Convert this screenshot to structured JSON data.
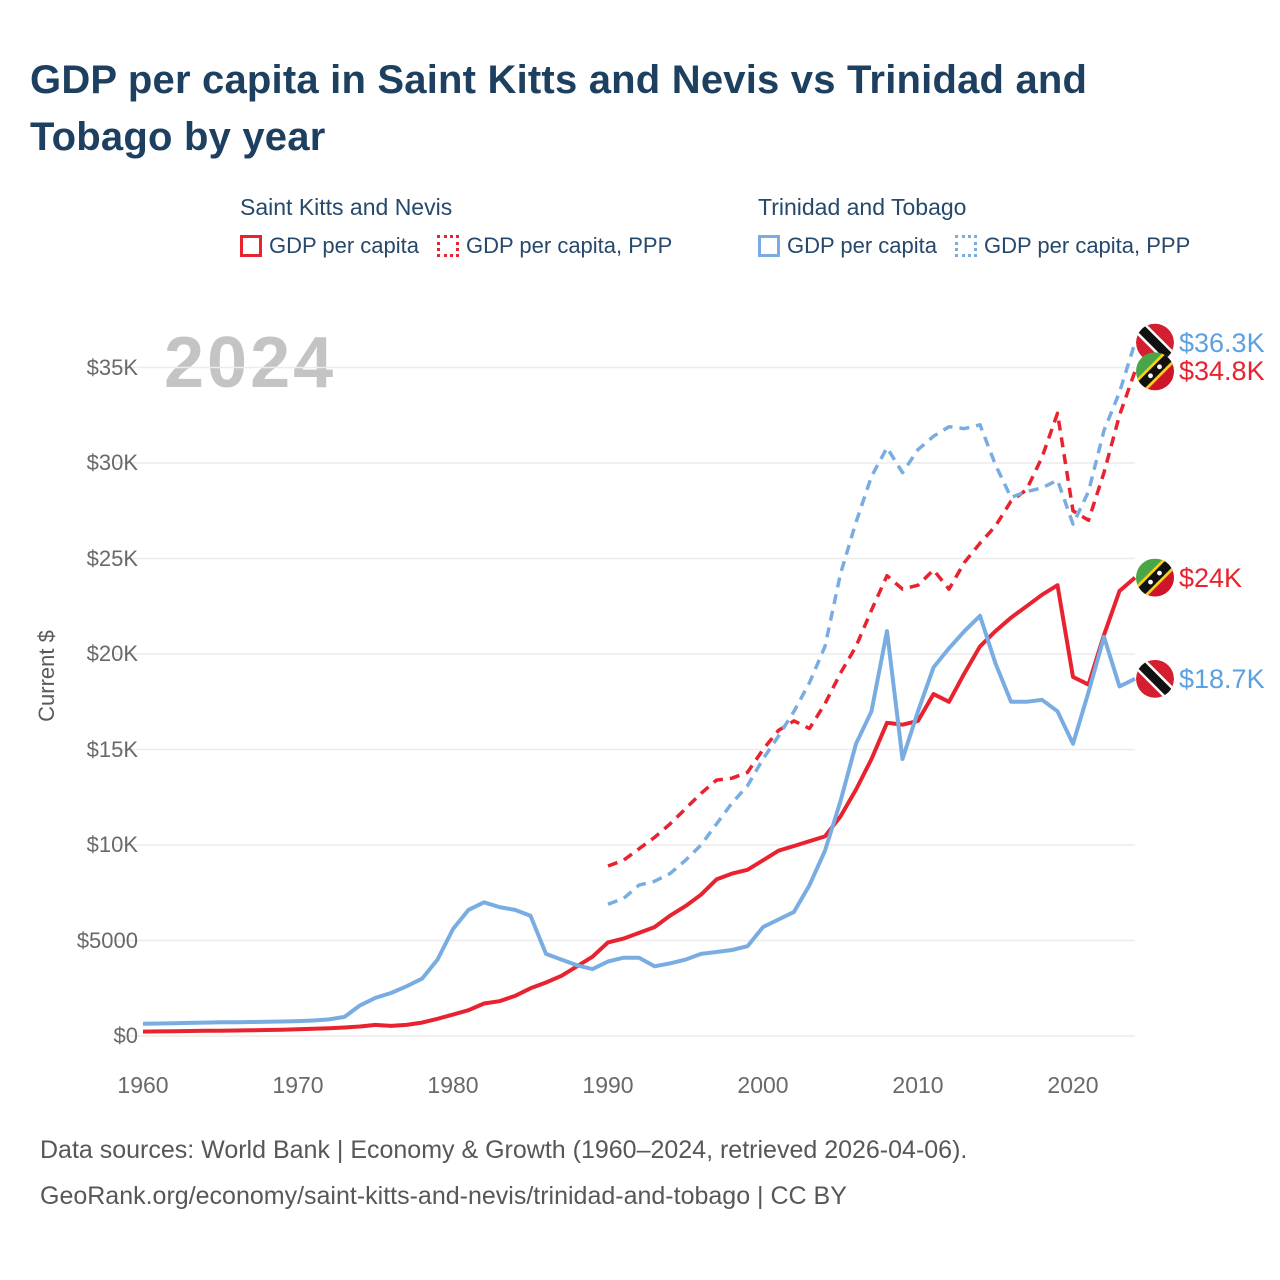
{
  "title": {
    "line1": "GDP per capita in Saint Kitts and Nevis vs Trinidad and",
    "line2": "Tobago by year"
  },
  "watermark": "2024",
  "legend": {
    "groups": [
      {
        "header": "Saint Kitts and Nevis",
        "color": "#e8232f",
        "items": [
          {
            "label": "GDP per capita",
            "style": "solid"
          },
          {
            "label": "GDP per capita, PPP",
            "style": "dotted"
          }
        ]
      },
      {
        "header": "Trinidad and Tobago",
        "color": "#79ade2",
        "items": [
          {
            "label": "GDP per capita",
            "style": "solid"
          },
          {
            "label": "GDP per capita, PPP",
            "style": "dotted"
          }
        ]
      }
    ]
  },
  "y_axis": {
    "label": "Current $",
    "ticks": [
      {
        "value": 0,
        "label": "$0"
      },
      {
        "value": 5000,
        "label": "$5000"
      },
      {
        "value": 10000,
        "label": "$10K"
      },
      {
        "value": 15000,
        "label": "$15K"
      },
      {
        "value": 20000,
        "label": "$20K"
      },
      {
        "value": 25000,
        "label": "$25K"
      },
      {
        "value": 30000,
        "label": "$30K"
      },
      {
        "value": 35000,
        "label": "$35K"
      }
    ]
  },
  "x_axis": {
    "ticks": [
      1960,
      1970,
      1980,
      1990,
      2000,
      2010,
      2020
    ]
  },
  "end_labels": [
    {
      "text": "$36.3K",
      "value": 36300,
      "color": "#5da0e0",
      "flag": "tt"
    },
    {
      "text": "$34.8K",
      "value": 34800,
      "color": "#e8232f",
      "flag": "skn"
    },
    {
      "text": "$24K",
      "value": 24000,
      "color": "#e8232f",
      "flag": "skn"
    },
    {
      "text": "$18.7K",
      "value": 18700,
      "color": "#5da0e0",
      "flag": "tt"
    }
  ],
  "footer": {
    "line1": "Data sources: World Bank | Economy & Growth (1960–2024, retrieved 2026-04-06).",
    "line2": "GeoRank.org/economy/saint-kitts-and-nevis/trinidad-and-tobago | CC BY"
  },
  "chart_data": {
    "type": "line",
    "title": "GDP per capita in Saint Kitts and Nevis vs Trinidad and Tobago by year",
    "ylabel": "Current $",
    "ylim": [
      0,
      37000
    ],
    "xlim": [
      1959,
      2025
    ],
    "grid": "horizontal",
    "legend_position": "top",
    "series": [
      {
        "name": "Saint Kitts and Nevis GDP per capita",
        "color": "#e8232f",
        "dash": false,
        "years": [
          1960,
          1961,
          1962,
          1963,
          1964,
          1965,
          1966,
          1967,
          1968,
          1969,
          1970,
          1971,
          1972,
          1973,
          1974,
          1975,
          1976,
          1977,
          1978,
          1979,
          1980,
          1981,
          1982,
          1983,
          1984,
          1985,
          1986,
          1987,
          1988,
          1989,
          1990,
          1991,
          1992,
          1993,
          1994,
          1995,
          1996,
          1997,
          1998,
          1999,
          2000,
          2001,
          2002,
          2003,
          2004,
          2005,
          2006,
          2007,
          2008,
          2009,
          2010,
          2011,
          2012,
          2013,
          2014,
          2015,
          2016,
          2017,
          2018,
          2019,
          2020,
          2021,
          2022,
          2023,
          2024
        ],
        "values": [
          230,
          240,
          250,
          260,
          270,
          280,
          290,
          300,
          315,
          330,
          350,
          375,
          405,
          445,
          500,
          580,
          530,
          580,
          700,
          900,
          1120,
          1350,
          1700,
          1820,
          2100,
          2500,
          2800,
          3150,
          3650,
          4150,
          4900,
          5100,
          5400,
          5700,
          6300,
          6800,
          7400,
          8200,
          8500,
          8700,
          9200,
          9700,
          9950,
          10200,
          10450,
          11500,
          12900,
          14500,
          16400,
          16300,
          16500,
          17900,
          17500,
          19000,
          20400,
          21200,
          21900,
          22500,
          23100,
          23600,
          18800,
          18400,
          21000,
          23300,
          24000
        ]
      },
      {
        "name": "Saint Kitts and Nevis GDP per capita, PPP",
        "color": "#e8232f",
        "dash": true,
        "years": [
          1990,
          1991,
          1992,
          1993,
          1994,
          1995,
          1996,
          1997,
          1998,
          1999,
          2000,
          2001,
          2002,
          2003,
          2004,
          2005,
          2006,
          2007,
          2008,
          2009,
          2010,
          2011,
          2012,
          2013,
          2014,
          2015,
          2016,
          2017,
          2018,
          2019,
          2020,
          2021,
          2022,
          2023,
          2024
        ],
        "values": [
          8900,
          9200,
          9800,
          10400,
          11100,
          11900,
          12700,
          13400,
          13500,
          13800,
          15000,
          16000,
          16500,
          16100,
          17400,
          19000,
          20400,
          22300,
          24100,
          23400,
          23600,
          24400,
          23400,
          24800,
          25800,
          26700,
          28000,
          28600,
          30300,
          32600,
          27500,
          27000,
          29500,
          32500,
          34800
        ]
      },
      {
        "name": "Trinidad and Tobago GDP per capita",
        "color": "#79ade2",
        "dash": false,
        "years": [
          1960,
          1961,
          1962,
          1963,
          1964,
          1965,
          1966,
          1967,
          1968,
          1969,
          1970,
          1971,
          1972,
          1973,
          1974,
          1975,
          1976,
          1977,
          1978,
          1979,
          1980,
          1981,
          1982,
          1983,
          1984,
          1985,
          1986,
          1987,
          1988,
          1989,
          1990,
          1991,
          1992,
          1993,
          1994,
          1995,
          1996,
          1997,
          1998,
          1999,
          2000,
          2001,
          2002,
          2003,
          2004,
          2005,
          2006,
          2007,
          2008,
          2009,
          2010,
          2011,
          2012,
          2013,
          2014,
          2015,
          2016,
          2017,
          2018,
          2019,
          2020,
          2021,
          2022,
          2023,
          2024
        ],
        "values": [
          640,
          655,
          670,
          685,
          700,
          715,
          725,
          735,
          745,
          760,
          780,
          810,
          870,
          1000,
          1600,
          2000,
          2250,
          2600,
          3000,
          4000,
          5600,
          6600,
          7000,
          6750,
          6600,
          6300,
          4300,
          4000,
          3700,
          3500,
          3900,
          4100,
          4100,
          3650,
          3800,
          4000,
          4300,
          4400,
          4500,
          4700,
          5700,
          6100,
          6500,
          7900,
          9700,
          12300,
          15300,
          17000,
          21200,
          14500,
          17000,
          19300,
          20300,
          21200,
          22000,
          19500,
          17500,
          17500,
          17600,
          17000,
          15300,
          18000,
          20900,
          18300,
          18700
        ]
      },
      {
        "name": "Trinidad and Tobago GDP per capita, PPP",
        "color": "#79ade2",
        "dash": true,
        "years": [
          1990,
          1991,
          1992,
          1993,
          1994,
          1995,
          1996,
          1997,
          1998,
          1999,
          2000,
          2001,
          2002,
          2003,
          2004,
          2005,
          2006,
          2007,
          2008,
          2009,
          2010,
          2011,
          2012,
          2013,
          2014,
          2015,
          2016,
          2017,
          2018,
          2019,
          2020,
          2021,
          2022,
          2023,
          2024
        ],
        "values": [
          6900,
          7200,
          7900,
          8100,
          8500,
          9200,
          10000,
          11100,
          12200,
          13100,
          14500,
          15700,
          17000,
          18500,
          20400,
          24200,
          26900,
          29300,
          30800,
          29500,
          30700,
          31400,
          31900,
          31800,
          32000,
          29900,
          28200,
          28500,
          28700,
          29100,
          26800,
          28500,
          31700,
          33700,
          36300
        ]
      }
    ]
  }
}
